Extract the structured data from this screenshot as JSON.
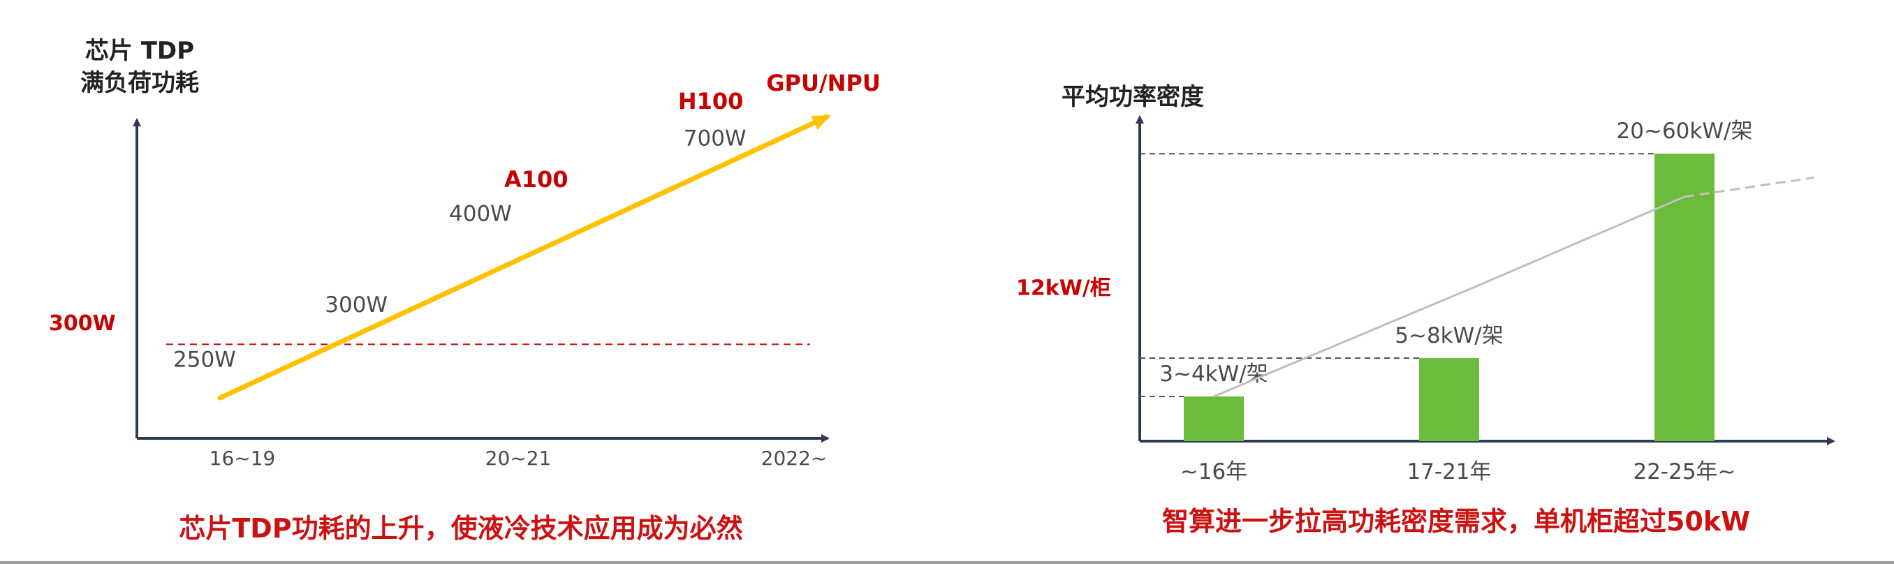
{
  "colors": {
    "axis": "#2d3b57",
    "label": "#4a4a4a",
    "title": "#222222",
    "red": "#cc1111",
    "dark_red": "#c80000",
    "arrow": "#ffc000",
    "bar": "#6cbb3c",
    "trend": "#bfbfbf",
    "dash_blue": "#44546a"
  },
  "chart_data": [
    {
      "type": "line",
      "title": "芯片TDP功耗的上升，使液冷技术应用成为必然",
      "ylabel": [
        "芯片 TDP",
        "满负荷功耗"
      ],
      "categories": [
        "16~19",
        "20~21",
        "2022~"
      ],
      "series": [
        {
          "name": "GPU/NPU",
          "points": [
            {
              "x": 0.0,
              "y": 220
            },
            {
              "x": 2.2,
              "y": 760
            }
          ]
        }
      ],
      "ylim": [
        200,
        800
      ],
      "reference_line": {
        "label": "300W",
        "value": 323
      },
      "annotations": [
        {
          "text": "250W",
          "x": 0.0,
          "y": 280,
          "color": "gray"
        },
        {
          "text": "300W",
          "x": 0.55,
          "y": 385,
          "color": "gray"
        },
        {
          "text": "400W",
          "x": 1.0,
          "y": 560,
          "color": "gray"
        },
        {
          "text": "A100",
          "x": 1.2,
          "y": 625,
          "color": "red"
        },
        {
          "text": "700W",
          "x": 1.85,
          "y": 705,
          "color": "gray"
        },
        {
          "text": "H100",
          "x": 1.83,
          "y": 775,
          "color": "red"
        },
        {
          "text": "GPU/NPU",
          "x": 2.15,
          "y": 810,
          "color": "red"
        }
      ]
    },
    {
      "type": "bar",
      "title": "智算进一步拉高功耗密度需求，单机柜超过50kW",
      "ylabel": "平均功率密度",
      "categories": [
        "~16年",
        "17-21年",
        "22-25年~"
      ],
      "values": [
        3.5,
        6.5,
        40
      ],
      "value_labels": [
        "3~4kW/架",
        "5~8kW/架",
        "20~60kW/架"
      ],
      "reference_line": {
        "label": "12kW/柜",
        "value": 12
      },
      "trend_line": [
        {
          "x": 0.0,
          "y": 3.5
        },
        {
          "x": 1.1,
          "y": 12
        },
        {
          "x": 2.0,
          "y": 31
        },
        {
          "x": 2.55,
          "y": 35
        }
      ]
    }
  ]
}
